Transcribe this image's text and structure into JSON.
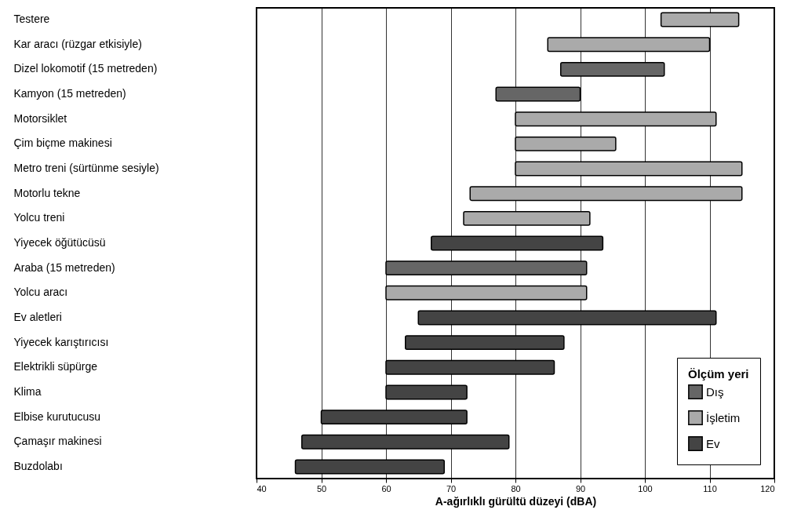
{
  "chart_data": {
    "type": "bar",
    "orientation": "horizontal",
    "xlabel": "A-ağırlıklı gürültü düzeyi (dBA)",
    "legend_title": "Ölçüm yeri",
    "categories": [
      "Testere",
      "Kar aracı (rüzgar etkisiyle)",
      "Dizel lokomotif (15 metreden)",
      "Kamyon (15 metreden)",
      "Motorsiklet",
      "Çim biçme makinesi",
      "Metro treni (sürtünme sesiyle)",
      "Motorlu tekne",
      "Yolcu treni",
      "Yiyecek öğütücüsü",
      "Araba (15 metreden)",
      "Yolcu aracı",
      "Ev aletleri",
      "Yiyecek karıştırıcısı",
      "Elektrikli süpürge",
      "Klima",
      "Elbise kurutucusu",
      "Çamaşır makinesi",
      "Buzdolabı"
    ],
    "series": [
      {
        "name": "Dış",
        "color": "#666666",
        "base": [
          null,
          null,
          87,
          77,
          null,
          null,
          null,
          null,
          null,
          null,
          60,
          null,
          null,
          null,
          null,
          null,
          null,
          null,
          null
        ],
        "values": [
          null,
          null,
          16,
          13,
          null,
          null,
          null,
          null,
          null,
          null,
          31,
          null,
          null,
          null,
          null,
          null,
          null,
          null,
          null
        ]
      },
      {
        "name": "İşletim",
        "color": "#aaaaaa",
        "base": [
          102.5,
          85,
          null,
          null,
          80,
          80,
          80,
          73,
          72,
          null,
          null,
          60,
          null,
          null,
          null,
          null,
          null,
          null,
          null
        ],
        "values": [
          12,
          25,
          null,
          null,
          31,
          15.5,
          35,
          42,
          19.5,
          null,
          null,
          31,
          null,
          null,
          null,
          null,
          null,
          null,
          null
        ]
      },
      {
        "name": "Ev",
        "color": "#444444",
        "base": [
          null,
          null,
          null,
          null,
          null,
          null,
          null,
          null,
          null,
          67,
          null,
          null,
          65,
          63,
          60,
          60,
          50,
          47,
          46
        ],
        "values": [
          null,
          null,
          null,
          null,
          null,
          null,
          null,
          null,
          null,
          26.5,
          null,
          null,
          46,
          24.5,
          26,
          12.5,
          22.5,
          32,
          23
        ]
      }
    ],
    "xlim": [
      40,
      120
    ],
    "xticks": [
      40,
      50,
      60,
      70,
      80,
      90,
      100,
      110,
      120
    ],
    "grid": "x",
    "legend": "bottom right"
  }
}
